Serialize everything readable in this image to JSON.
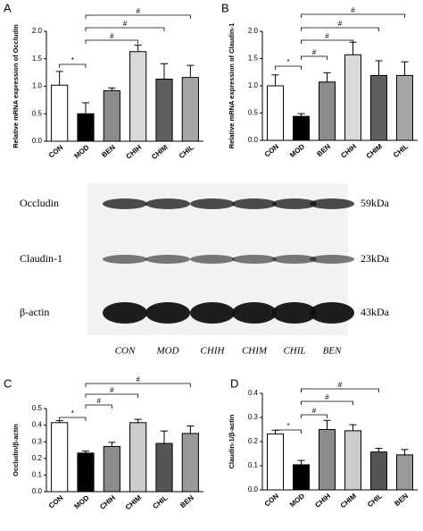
{
  "chart_data": [
    {
      "type": "bar",
      "panel_label": "A",
      "y_label": "Relative mRNA expression of Occludin",
      "categories": [
        "CON",
        "MOD",
        "BEN",
        "CHIH",
        "CHIM",
        "CHIL"
      ],
      "values": [
        1.02,
        0.5,
        0.92,
        1.63,
        1.13,
        1.16
      ],
      "errors": [
        0.25,
        0.2,
        0.05,
        0.12,
        0.28,
        0.22
      ],
      "colors": [
        "#ffffff",
        "#000000",
        "#8c8c8c",
        "#d9d9d9",
        "#5f5f5f",
        "#a6a6a6"
      ],
      "ylim": [
        0,
        2.0
      ],
      "yticks": [
        {
          "value": 0,
          "label": "0.0"
        },
        0.5,
        {
          "value": 1,
          "label": "1.0"
        },
        1.5,
        {
          "value": 2,
          "label": "2.0"
        }
      ],
      "annotations": [
        "*",
        "#",
        "#",
        "#"
      ]
    },
    {
      "type": "bar",
      "panel_label": "B",
      "y_label": "Relative mRNA expression of Claudin-1",
      "categories": [
        "CON",
        "MOD",
        "BEN",
        "CHIH",
        "CHIM",
        "CHIL"
      ],
      "values": [
        1.0,
        0.44,
        1.07,
        1.57,
        1.19,
        1.19
      ],
      "errors": [
        0.2,
        0.05,
        0.17,
        0.23,
        0.27,
        0.25
      ],
      "colors": [
        "#ffffff",
        "#000000",
        "#8c8c8c",
        "#d9d9d9",
        "#5f5f5f",
        "#a6a6a6"
      ],
      "ylim": [
        0,
        2.0
      ],
      "yticks": [
        {
          "value": 0,
          "label": "0.0"
        },
        0.5,
        {
          "value": 1,
          "label": "1.0"
        },
        1.5,
        {
          "value": 2,
          "label": "2.0"
        }
      ],
      "annotations": [
        "*",
        "#",
        "#",
        "#",
        "#"
      ]
    },
    {
      "type": "bar",
      "panel_label": "C",
      "y_label": "Occludin/β-actin",
      "categories": [
        "CON",
        "MOD",
        "CHIH",
        "CHIM",
        "CHIL",
        "BEN"
      ],
      "values": [
        0.415,
        0.232,
        0.272,
        0.415,
        0.29,
        0.35
      ],
      "errors": [
        0.012,
        0.012,
        0.025,
        0.02,
        0.075,
        0.045
      ],
      "colors": [
        "#ffffff",
        "#000000",
        "#8c8c8c",
        "#cccccc",
        "#555555",
        "#999999"
      ],
      "ylim": [
        0,
        0.5
      ],
      "yticks": [
        {
          "value": 0,
          "label": "0.0"
        },
        0.1,
        0.2,
        0.3,
        0.4,
        0.5
      ],
      "annotations": [
        "*",
        "#",
        "#",
        "#"
      ]
    },
    {
      "type": "bar",
      "panel_label": "D",
      "y_label": "Claudin-1/β-actin",
      "categories": [
        "CON",
        "MOD",
        "CHIH",
        "CHIM",
        "CHIL",
        "BEN"
      ],
      "values": [
        0.232,
        0.104,
        0.25,
        0.245,
        0.157,
        0.145
      ],
      "errors": [
        0.015,
        0.018,
        0.038,
        0.025,
        0.015,
        0.022
      ],
      "colors": [
        "#ffffff",
        "#000000",
        "#8c8c8c",
        "#cccccc",
        "#555555",
        "#999999"
      ],
      "ylim": [
        0,
        0.4
      ],
      "yticks": [
        {
          "value": 0,
          "label": "0.0"
        },
        0.1,
        0.2,
        0.3,
        0.4
      ],
      "annotations": [
        "*",
        "#",
        "#",
        "#"
      ]
    }
  ],
  "blot": {
    "proteins": [
      "Occludin",
      "Claudin-1",
      "β-actin"
    ],
    "sizes": [
      "59kDa",
      "23kDa",
      "43kDa"
    ],
    "lanes": [
      "CON",
      "MOD",
      "CHIH",
      "CHIM",
      "CHIL",
      "BEN"
    ]
  }
}
